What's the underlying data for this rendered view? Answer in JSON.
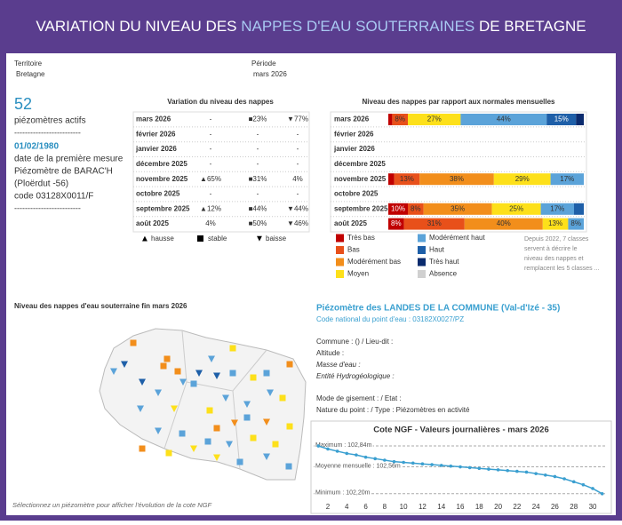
{
  "header": {
    "title_parts": [
      "VARIATION DU NIVEAU DES ",
      "NAPPES D'EAU SOUTERRAINES",
      " DE BRETAGNE"
    ]
  },
  "filters": [
    {
      "label": "Territoire",
      "value": "Bretagne"
    },
    {
      "label": "Période",
      "value": "mars 2026"
    }
  ],
  "kpi": {
    "count": 52,
    "count_label": "piézomètres actifs",
    "separator": "-------------------------",
    "date": "01/02/1980",
    "lines": [
      "date de la première mesure",
      "Piézomètre de BARAC'H",
      "(Ploërdut -56)",
      "code 03128X0011/F"
    ]
  },
  "variation_table": {
    "title": "Variation du niveau des nappes",
    "rows": [
      [
        "mars 2026",
        "-",
        "■23%",
        "▼77%"
      ],
      [
        "février 2026",
        "-",
        "-",
        "-"
      ],
      [
        "janvier 2026",
        "-",
        "-",
        "-"
      ],
      [
        "décembre 2025",
        "-",
        "-",
        "-"
      ],
      [
        "novembre 2025",
        "▲65%",
        "■31%",
        "4%"
      ],
      [
        "octobre 2025",
        "-",
        "-",
        "-"
      ],
      [
        "septembre 2025",
        "▲12%",
        "■44%",
        "▼44%"
      ],
      [
        "août 2025",
        "4%",
        "■50%",
        "▼46%"
      ]
    ],
    "legend": [
      "hausse",
      "stable",
      "baisse"
    ]
  },
  "map": {
    "title": "Niveau des nappes d'eau souterraine fin mars 2026",
    "footnote": "Sélectionnez un piézomètre pour afficher l'évolution de la cote NGF"
  },
  "station": {
    "title": "Piézomètre des LANDES DE LA COMMUNE (Val-d'Izé - 35)",
    "code": "Code national du point d'eau : 03182X0027/PZ",
    "lines": [
      "Commune :  () / Lieu-dit :",
      "Altitude :",
      "Masse d'eau :",
      "Entité Hydrogéologique :"
    ],
    "lines2": [
      "Mode de gisement :   / Etat :",
      "Nature du point :  / Type : Piézomètres en activité"
    ]
  },
  "chart_data": [
    {
      "type": "stacked_barh",
      "title": "Niveau des nappes par rapport aux normales mensuelles",
      "categories": [
        "mars 2026",
        "février 2026",
        "janvier 2026",
        "décembre 2025",
        "novembre 2025",
        "octobre 2025",
        "septembre 2025",
        "août 2025"
      ],
      "xlim": [
        0,
        100
      ],
      "series": [
        {
          "name": "Très bas",
          "color": "#c00000",
          "values": [
            2,
            null,
            null,
            null,
            3,
            null,
            10,
            8
          ],
          "value_labels": [
            null,
            null,
            null,
            null,
            null,
            null,
            "10%",
            "8%"
          ]
        },
        {
          "name": "Bas",
          "color": "#e8501a",
          "values": [
            8,
            null,
            null,
            null,
            13,
            null,
            8,
            31
          ],
          "value_labels": [
            "8%",
            null,
            null,
            null,
            "13%",
            null,
            "8%",
            "31%"
          ]
        },
        {
          "name": "Modérément bas",
          "color": "#f28e1b",
          "values": [
            null,
            null,
            null,
            null,
            38,
            null,
            35,
            40
          ],
          "value_labels": [
            null,
            null,
            null,
            null,
            "38%",
            null,
            "35%",
            "40%"
          ]
        },
        {
          "name": "Moyen",
          "color": "#fde01a",
          "values": [
            27,
            null,
            null,
            null,
            29,
            null,
            25,
            13
          ],
          "value_labels": [
            "27%",
            null,
            null,
            null,
            "29%",
            null,
            "25%",
            "13%"
          ]
        },
        {
          "name": "Modérément haut",
          "color": "#5ba3d9",
          "values": [
            44,
            null,
            null,
            null,
            17,
            null,
            17,
            8
          ],
          "value_labels": [
            "44%",
            null,
            null,
            null,
            "17%",
            null,
            "17%",
            "8%"
          ]
        },
        {
          "name": "Haut",
          "color": "#1e5fa8",
          "values": [
            15,
            null,
            null,
            null,
            null,
            null,
            5,
            null
          ],
          "value_labels": [
            "15%",
            null,
            null,
            null,
            null,
            null,
            null,
            null
          ]
        },
        {
          "name": "Très haut",
          "color": "#0a2b6e",
          "values": [
            4,
            null,
            null,
            null,
            null,
            null,
            null,
            null
          ]
        },
        {
          "name": "Absence",
          "color": "#d0d0d0",
          "values": [
            null,
            null,
            null,
            null,
            null,
            null,
            null,
            null
          ]
        }
      ],
      "note": [
        "Depuis 2022, 7 classes",
        "servent à décrire le",
        "niveau des nappes et",
        "remplacent les 5 classes ..."
      ]
    },
    {
      "type": "line",
      "title": "Cote NGF - Valeurs journalières -  mars 2026",
      "color": "#3a9fd0",
      "x": [
        1,
        2,
        3,
        4,
        5,
        6,
        7,
        8,
        9,
        10,
        11,
        12,
        13,
        14,
        15,
        16,
        17,
        18,
        19,
        20,
        21,
        22,
        23,
        24,
        25,
        26,
        27,
        28,
        29,
        30,
        31
      ],
      "values": [
        102.84,
        102.8,
        102.77,
        102.74,
        102.72,
        102.69,
        102.67,
        102.65,
        102.63,
        102.62,
        102.61,
        102.6,
        102.59,
        102.58,
        102.57,
        102.56,
        102.55,
        102.54,
        102.53,
        102.52,
        102.51,
        102.5,
        102.49,
        102.47,
        102.45,
        102.43,
        102.4,
        102.36,
        102.32,
        102.27,
        102.2
      ],
      "xlim": [
        0.5,
        31.5
      ],
      "ylim": [
        102.15,
        102.9
      ],
      "xticks": [
        2,
        4,
        6,
        8,
        10,
        12,
        14,
        16,
        18,
        20,
        22,
        24,
        26,
        28,
        30
      ],
      "reference_lines": [
        {
          "value": 102.84,
          "label": "Maximum : 102,84m"
        },
        {
          "value": 102.56,
          "label": "Moyenne mensuelle : 102,56m"
        },
        {
          "value": 102.2,
          "label": "Minimum : 102,20m"
        }
      ]
    }
  ]
}
